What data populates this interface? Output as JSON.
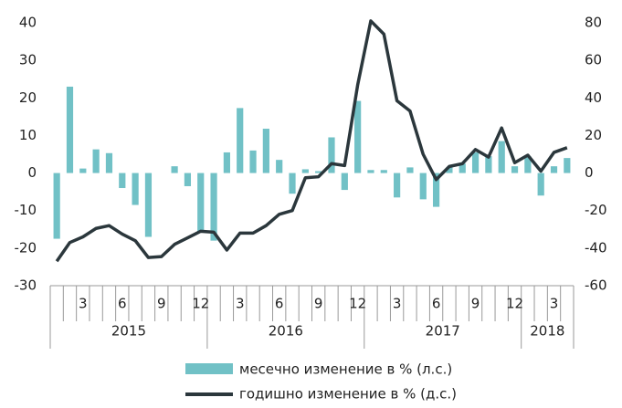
{
  "chart_data": {
    "type": "bar_line",
    "categories": [
      null,
      null,
      "3",
      null,
      null,
      "6",
      null,
      null,
      "9",
      null,
      null,
      "12",
      null,
      null,
      "3",
      null,
      null,
      "6",
      null,
      null,
      "9",
      null,
      null,
      "12",
      null,
      null,
      "3",
      null,
      null,
      "6",
      null,
      null,
      "9",
      null,
      null,
      "12",
      null,
      null,
      "3",
      null
    ],
    "years": [
      "2015",
      "2016",
      "2017",
      "2018"
    ],
    "series": [
      {
        "name": "месечно изменение в % (л.с.)",
        "color": "#71c1c6",
        "axis": "y",
        "values": [
          -17.5,
          23,
          1.2,
          6.3,
          5.3,
          -4,
          -8.5,
          -17,
          0,
          1.8,
          -3.5,
          -15.5,
          -18,
          5.5,
          17.3,
          6,
          11.8,
          3.5,
          -5.5,
          1,
          0.5,
          9.5,
          -4.5,
          19.2,
          0.8,
          0.8,
          -6.5,
          1.5,
          -7,
          -9,
          1.5,
          2.5,
          5.5,
          4.5,
          8.5,
          1.8,
          4.5,
          -6,
          1.8,
          4
        ]
      },
      {
        "name": "годишно изменение в % (д.с.)",
        "color": "#2b373c",
        "axis": "y2",
        "values": [
          -47,
          -37,
          -34,
          -29.5,
          -28,
          -32.5,
          -36,
          -45,
          -44.5,
          -38,
          -34.5,
          -31,
          -31.5,
          -41,
          -32,
          -32,
          -28,
          -22,
          -20,
          -2.5,
          -2,
          5,
          4,
          47,
          81,
          74,
          38.5,
          33,
          10,
          -3.5,
          3.5,
          5,
          12.5,
          8.5,
          24,
          5.5,
          9.5,
          1,
          11,
          13.5
        ]
      }
    ],
    "ylim": [
      -30,
      40
    ],
    "yticks": [
      -30,
      -20,
      -10,
      0,
      10,
      20,
      30,
      40
    ],
    "y2lim": [
      -60,
      80
    ],
    "y2ticks": [
      -60,
      -40,
      -20,
      0,
      20,
      40,
      60,
      80
    ]
  }
}
